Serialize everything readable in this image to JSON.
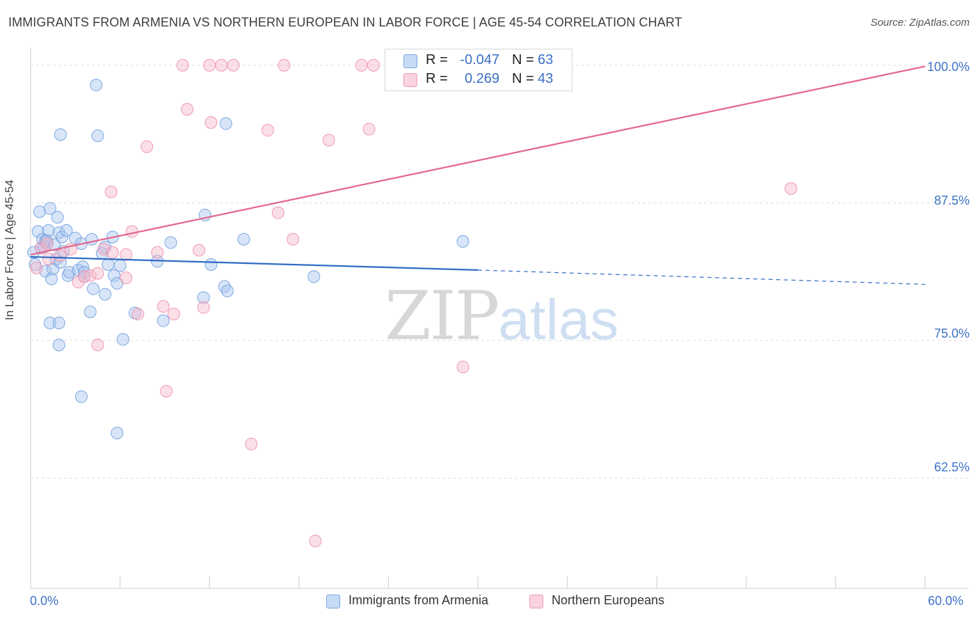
{
  "title": "IMMIGRANTS FROM ARMENIA VS NORTHERN EUROPEAN IN LABOR FORCE | AGE 45-54 CORRELATION CHART",
  "source": "Source: ZipAtlas.com",
  "watermark": {
    "zip": "ZIP",
    "atlas": "atlas"
  },
  "legend_top": {
    "rows": [
      {
        "r_label": "R =",
        "r_value": "-0.047",
        "n_label": "N =",
        "n_value": "63",
        "color": "#a8c6f0"
      },
      {
        "r_label": "R =",
        "r_value": "0.269",
        "n_label": "N =",
        "n_value": "43",
        "color": "#f6b8ca"
      }
    ]
  },
  "legend_bottom": [
    {
      "label": "Immigrants from Armenia",
      "color": "#a8c6f0"
    },
    {
      "label": "Northern Europeans",
      "color": "#f6b8ca"
    }
  ],
  "chart_data": {
    "type": "scatter",
    "title": "IMMIGRANTS FROM ARMENIA VS NORTHERN EUROPEAN IN LABOR FORCE | AGE 45-54 CORRELATION CHART",
    "xlabel": "",
    "ylabel": "In Labor Force | Age 45-54",
    "xlim": [
      0,
      60
    ],
    "ylim": [
      52.5,
      101.5
    ],
    "x_tick_labels": [
      {
        "value": 0,
        "label": "0.0%"
      },
      {
        "value": 60,
        "label": "60.0%"
      }
    ],
    "y_tick_labels": [
      {
        "value": 100,
        "label": "100.0%"
      },
      {
        "value": 87.5,
        "label": "87.5%"
      },
      {
        "value": 75,
        "label": "75.0%"
      },
      {
        "value": 62.5,
        "label": "62.5%"
      }
    ],
    "y_gridlines": [
      100,
      87.5,
      75,
      62.5
    ],
    "x_minor_ticks": [
      6,
      12,
      18,
      24,
      30,
      36,
      42,
      48,
      54,
      60
    ],
    "grid": true,
    "series": [
      {
        "name": "Immigrants from Armenia",
        "color": "#a8c6f0",
        "stroke": "#6f9ede",
        "trend": {
          "x0": 0,
          "y0": 82.6,
          "x1": 30,
          "y1": 81.4,
          "dash_to_x": 60,
          "dash_to_y": 80.1,
          "color": "#2f6cc4"
        },
        "points": [
          [
            0.2,
            83.0
          ],
          [
            0.3,
            81.9
          ],
          [
            0.5,
            84.9
          ],
          [
            0.6,
            86.7
          ],
          [
            0.7,
            83.4
          ],
          [
            0.8,
            84.2
          ],
          [
            0.9,
            83.5
          ],
          [
            1.0,
            81.3
          ],
          [
            1.0,
            84.0
          ],
          [
            1.1,
            84.1
          ],
          [
            1.2,
            85.0
          ],
          [
            1.3,
            87.0
          ],
          [
            1.3,
            76.6
          ],
          [
            1.4,
            80.6
          ],
          [
            1.5,
            81.5
          ],
          [
            1.6,
            83.7
          ],
          [
            1.7,
            82.4
          ],
          [
            1.8,
            86.2
          ],
          [
            1.9,
            84.8
          ],
          [
            2.0,
            82.1
          ],
          [
            2.1,
            84.4
          ],
          [
            2.2,
            83.1
          ],
          [
            2.4,
            85.0
          ],
          [
            2.5,
            80.9
          ],
          [
            2.6,
            81.2
          ],
          [
            1.9,
            76.6
          ],
          [
            2.0,
            93.7
          ],
          [
            3.0,
            84.3
          ],
          [
            3.2,
            81.4
          ],
          [
            3.4,
            83.8
          ],
          [
            3.5,
            81.7
          ],
          [
            3.6,
            80.8
          ],
          [
            4.0,
            77.6
          ],
          [
            4.1,
            84.2
          ],
          [
            4.4,
            98.2
          ],
          [
            4.5,
            93.6
          ],
          [
            4.8,
            82.9
          ],
          [
            1.9,
            74.6
          ],
          [
            3.4,
            69.9
          ],
          [
            3.6,
            81.2
          ],
          [
            5.0,
            83.5
          ],
          [
            4.2,
            79.7
          ],
          [
            5.0,
            79.2
          ],
          [
            5.2,
            81.9
          ],
          [
            5.5,
            84.4
          ],
          [
            5.6,
            80.9
          ],
          [
            5.8,
            66.6
          ],
          [
            5.8,
            80.2
          ],
          [
            6.0,
            81.8
          ],
          [
            6.2,
            75.1
          ],
          [
            7.0,
            77.5
          ],
          [
            8.5,
            82.2
          ],
          [
            8.9,
            76.8
          ],
          [
            9.4,
            83.9
          ],
          [
            11.6,
            78.9
          ],
          [
            11.7,
            86.4
          ],
          [
            12.1,
            81.9
          ],
          [
            13.0,
            79.9
          ],
          [
            13.2,
            79.5
          ],
          [
            13.1,
            94.7
          ],
          [
            14.3,
            84.2
          ],
          [
            19.0,
            80.8
          ],
          [
            29.0,
            84.0
          ]
        ]
      },
      {
        "name": "Northern Europeans",
        "color": "#f6b8ca",
        "stroke": "#ec8fab",
        "trend": {
          "x0": 0,
          "y0": 82.8,
          "x1": 60,
          "y1": 99.9,
          "color": "#e4668f"
        },
        "points": [
          [
            0.4,
            81.6
          ],
          [
            0.7,
            83.4
          ],
          [
            1.1,
            83.8
          ],
          [
            1.2,
            82.4
          ],
          [
            2.0,
            82.7
          ],
          [
            2.7,
            83.3
          ],
          [
            3.2,
            80.3
          ],
          [
            3.6,
            80.8
          ],
          [
            4.0,
            80.9
          ],
          [
            4.5,
            81.1
          ],
          [
            4.5,
            74.6
          ],
          [
            4.9,
            83.3
          ],
          [
            5.5,
            83.0
          ],
          [
            5.4,
            88.5
          ],
          [
            6.4,
            82.8
          ],
          [
            6.4,
            80.7
          ],
          [
            6.8,
            84.9
          ],
          [
            7.2,
            77.4
          ],
          [
            7.8,
            92.6
          ],
          [
            8.5,
            83.0
          ],
          [
            8.9,
            78.1
          ],
          [
            9.1,
            70.4
          ],
          [
            9.6,
            77.4
          ],
          [
            10.2,
            100.0
          ],
          [
            10.5,
            96.0
          ],
          [
            11.3,
            83.2
          ],
          [
            11.6,
            78.0
          ],
          [
            12.0,
            100.0
          ],
          [
            12.1,
            94.8
          ],
          [
            12.8,
            100.0
          ],
          [
            13.6,
            100.0
          ],
          [
            14.8,
            65.6
          ],
          [
            15.9,
            94.1
          ],
          [
            16.6,
            86.6
          ],
          [
            17.0,
            100.0
          ],
          [
            17.6,
            84.2
          ],
          [
            19.1,
            56.8
          ],
          [
            20.0,
            93.2
          ],
          [
            22.2,
            100.0
          ],
          [
            22.7,
            94.2
          ],
          [
            23.0,
            100.0
          ],
          [
            29.0,
            72.6
          ],
          [
            51.0,
            88.8
          ]
        ]
      }
    ]
  }
}
